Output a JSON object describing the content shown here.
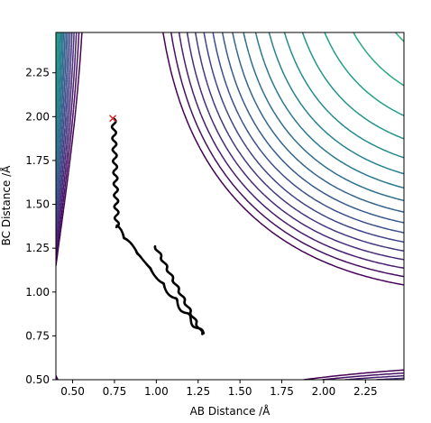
{
  "chart_data": {
    "type": "contour",
    "xlabel": "AB Distance /Å",
    "ylabel": "BC Distance /Å",
    "xlim": [
      0.4,
      2.48
    ],
    "ylim": [
      0.5,
      2.48
    ],
    "xticks": [
      "0.50",
      "0.75",
      "1.00",
      "1.25",
      "1.50",
      "1.75",
      "2.00",
      "2.25"
    ],
    "yticks": [
      "0.50",
      "0.75",
      "1.00",
      "1.25",
      "1.50",
      "1.75",
      "2.00",
      "2.25"
    ],
    "start_marker": {
      "x": 0.74,
      "y": 1.99,
      "symbol": "x",
      "color": "#d62728"
    },
    "trajectory_color": "#000000",
    "colormap": "viridis",
    "contour_levels": 26
  }
}
